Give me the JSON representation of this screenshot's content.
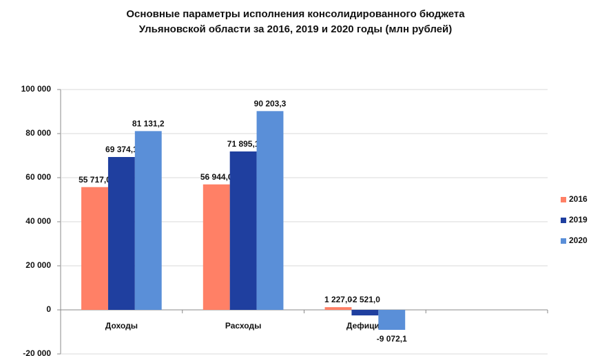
{
  "chart_data": {
    "type": "bar",
    "title": "Основные параметры исполнения консолидированного бюджета Ульяновской области за 2016, 2019 и 2020 годы (млн рублей)",
    "categories": [
      "Доходы",
      "Расходы",
      "Дефицит",
      null
    ],
    "series": [
      {
        "name": "2016",
        "color": "#ff8066",
        "values": [
          55717.0,
          56944.0,
          1227.0,
          null
        ],
        "value_labels": [
          "55 717,0",
          "56 944,0",
          "1 227,0",
          null
        ]
      },
      {
        "name": "2019",
        "color": "#1f3f9f",
        "values": [
          69374.1,
          71895.1,
          -2521.0,
          null
        ],
        "value_labels": [
          "69 374,1",
          "71 895,1",
          "-2 521,0",
          null
        ]
      },
      {
        "name": "2020",
        "color": "#5a8fd8",
        "values": [
          81131.2,
          90203.3,
          -9072.1,
          null
        ],
        "value_labels": [
          "81 131,2",
          "90 203,3",
          "-9 072,1",
          null
        ]
      }
    ],
    "ylim": [
      -20000,
      100000
    ],
    "yticks": [
      {
        "value": -20000,
        "label": "-20 000"
      },
      0,
      {
        "value": 20000,
        "label": "20 000"
      },
      {
        "value": 40000,
        "label": "40 000"
      },
      {
        "value": 60000,
        "label": "60 000"
      },
      {
        "value": 80000,
        "label": "80 000"
      },
      {
        "value": 100000,
        "label": "100 000"
      }
    ],
    "grid": true,
    "legend": "right"
  }
}
